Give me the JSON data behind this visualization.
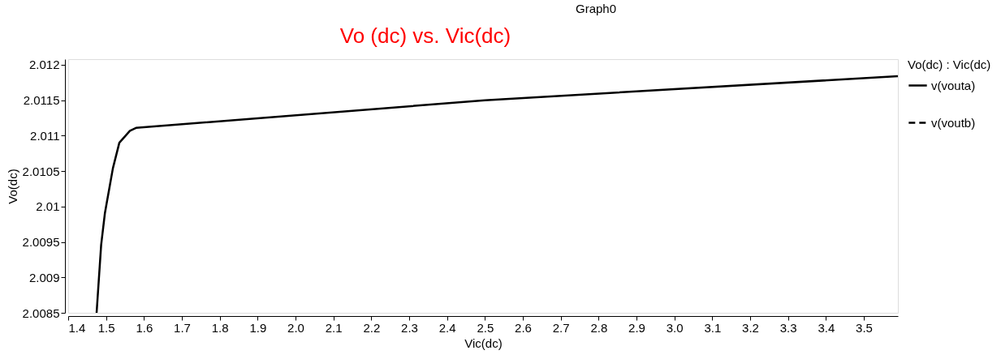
{
  "chart_data": {
    "type": "line",
    "title": "Vo (dc) vs. Vic(dc)",
    "annotations": [
      "Graph0"
    ],
    "xlabel": "Vic(dc)",
    "ylabel": "Vo(dc)",
    "legend_title": "Vo(dc) : Vic(dc)",
    "legend": "right",
    "grid": false,
    "marker": "none",
    "x": [
      1.475,
      1.487,
      1.497,
      1.509,
      1.518,
      1.535,
      1.563,
      1.579,
      2.5,
      3.59
    ],
    "series": [
      {
        "name": "v(vouta)",
        "color": "#000000",
        "line_style": "solid",
        "values": [
          2.0085,
          2.00946,
          2.00991,
          2.01027,
          2.01054,
          2.0109,
          2.01107,
          2.01111,
          2.0115,
          2.01184
        ]
      },
      {
        "name": "v(voutb)",
        "color": "#000000",
        "line_style": "dashed",
        "values": [
          null,
          null,
          null,
          null,
          null,
          null,
          null,
          null,
          null,
          null
        ]
      }
    ],
    "xlim": [
      1.4,
      3.59
    ],
    "xticks": [
      1.4,
      1.5,
      1.6,
      1.7,
      1.8,
      1.9,
      {
        "value": 2,
        "label": "2.0"
      },
      2.1,
      2.2,
      2.3,
      2.4,
      2.5,
      2.6,
      2.7,
      2.8,
      2.9,
      {
        "value": 3,
        "label": "3.0"
      },
      3.1,
      3.2,
      3.3,
      3.4,
      3.5
    ],
    "ylim": [
      2.0085,
      2.01208
    ],
    "yticks": [
      2.0085,
      2.009,
      2.0095,
      2.01,
      2.0105,
      2.011,
      2.0115,
      2.012
    ]
  }
}
